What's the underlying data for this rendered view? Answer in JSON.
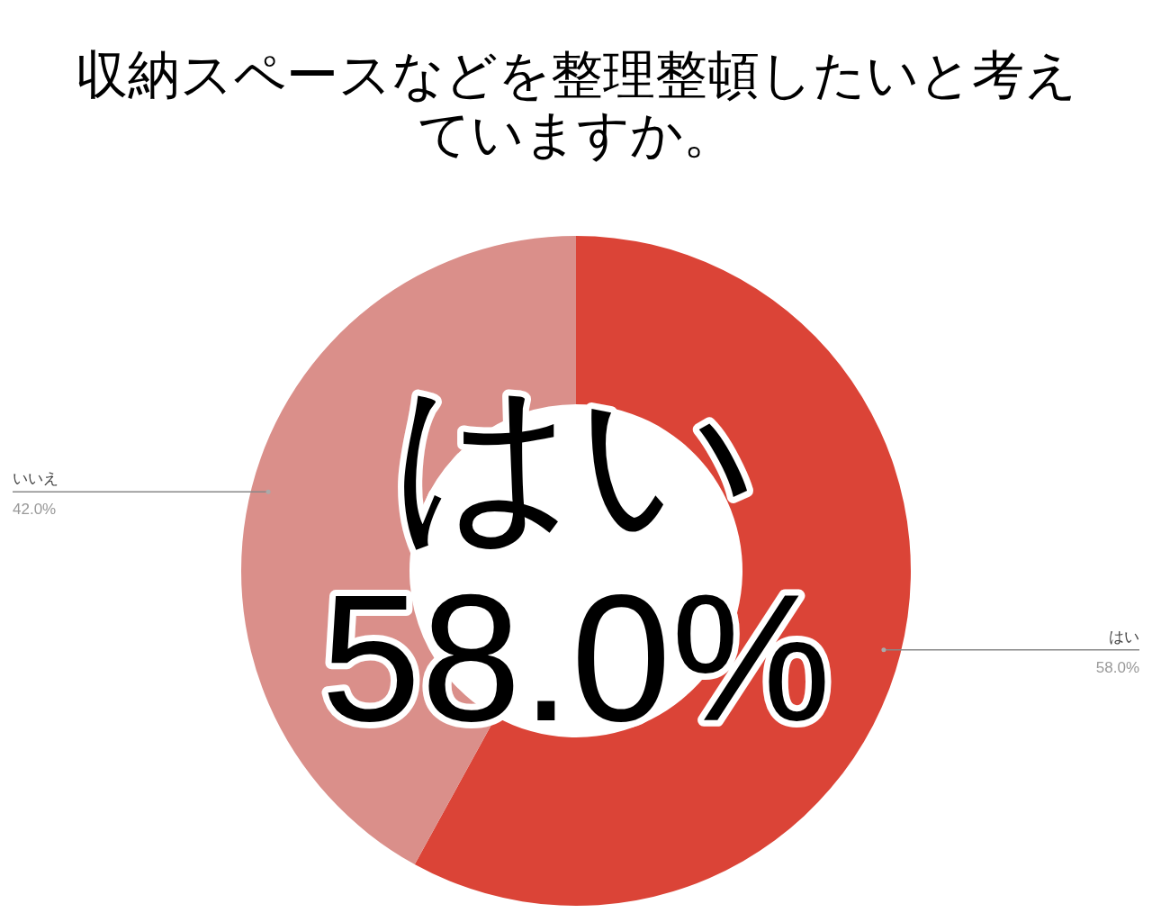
{
  "chart_data": {
    "type": "donut",
    "title": "収納スペースなどを整理整頓したいと考えていますか。",
    "categories": [
      "はい",
      "いいえ"
    ],
    "values": [
      58.0,
      42.0
    ],
    "colors": [
      "#db4437",
      "#da8f8a"
    ],
    "value_labels": [
      "58.0%",
      "42.0%"
    ],
    "annotations": [
      "はい",
      "58.0%"
    ]
  }
}
